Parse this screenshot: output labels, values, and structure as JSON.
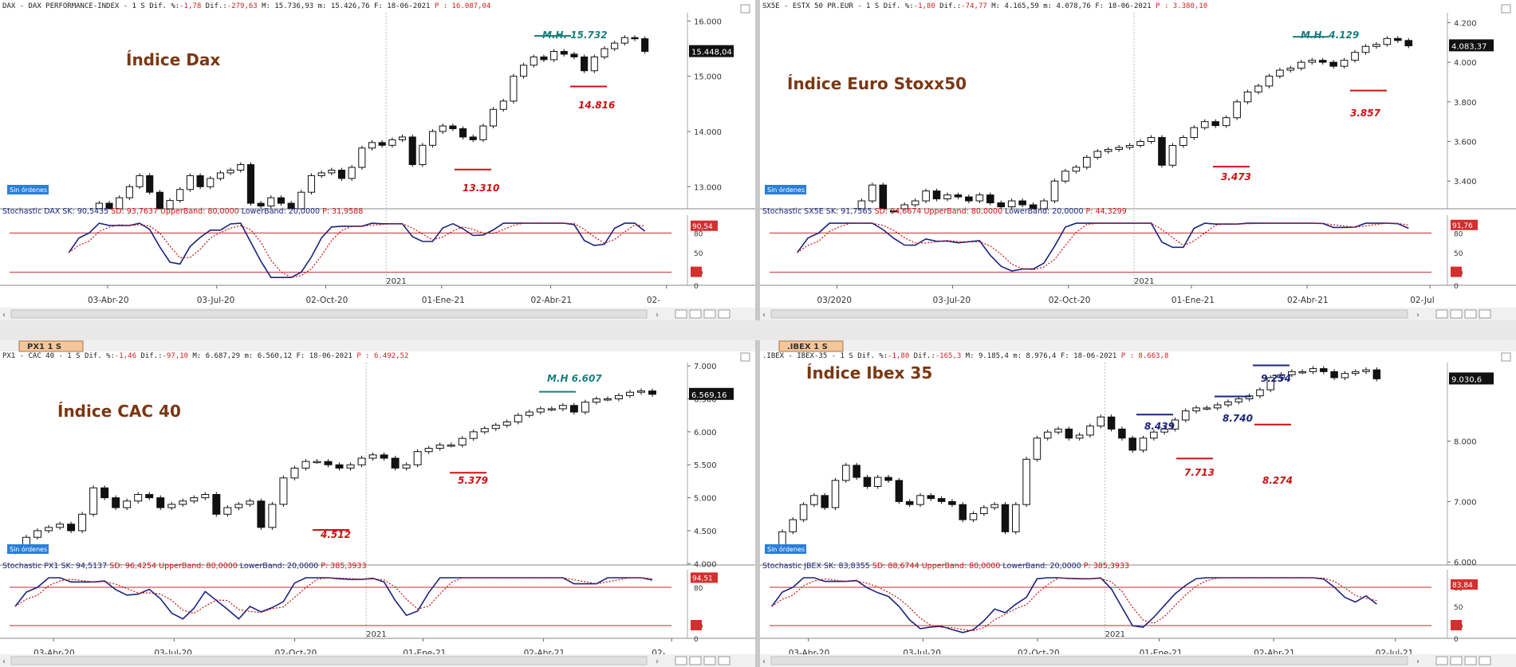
{
  "colors": {
    "title_brown": "#7a3712",
    "annotation_red": "#cc1111",
    "annotation_teal": "#1a7f7f",
    "annotation_navy": "#1a237e",
    "stoch_sk": "#1a237e",
    "stoch_sd": "#cc1111",
    "band": "#c62828",
    "header_red": "#d42020",
    "sin_ordenes_bg": "#2a7fd6",
    "tab_bg": "#f4c79a"
  },
  "panels": [
    {
      "id": "dax",
      "header_prefix": "DAX - DAX PERFORMANCE-INDEX -  1 S Dif. %:",
      "header_pct": "-1,78",
      "header_mid": " Dif.:",
      "header_dif": "-279,63",
      "header_hl": " M: 15.736,93 m: 15.426,76 F: 18-06-2021",
      "header_p": " P : 16.087,04",
      "title": "Índice Dax",
      "sin_ordenes": "Sin órdenes",
      "price_label": "15.448,04",
      "y_ticks": [
        "16.000",
        "15.000",
        "14.000",
        "13.000"
      ],
      "stoch_text_prefix": "Stochastic DAX SK: 90,5435",
      "stoch_sd": " SD: 93,7637",
      "stoch_ub": " UpperBand: 80,0000",
      "stoch_lb": " LowerBand: 20,0000",
      "stoch_p": " P: 31,9588",
      "stoch_value_label": "90,54",
      "stoch_ticks": [
        "80",
        "50",
        "20",
        "0"
      ],
      "year_label": "2021",
      "x_labels": [
        "03-Abr-20",
        "03-Jul-20",
        "02-Oct-20",
        "01-Ene-21",
        "02-Abr-21",
        "02-"
      ],
      "annotations": [
        {
          "text": "M.H. 15.732",
          "color": "teal"
        },
        {
          "text": "14.816",
          "color": "red"
        },
        {
          "text": "13.310",
          "color": "red"
        }
      ],
      "chart_data": {
        "type": "candlestick",
        "title": "Índice Dax",
        "frequency": "weekly",
        "ylim": [
          12600,
          16150
        ],
        "y_ticks": [
          16000,
          15000,
          14000,
          13000
        ],
        "x_range": [
          "2020-03-13",
          "2021-06-18"
        ],
        "start_date": "2020-03-20",
        "closes": [
          12050,
          12300,
          12500,
          12700,
          12600,
          12800,
          13000,
          13200,
          12900,
          12600,
          12750,
          12950,
          13200,
          13000,
          13150,
          13250,
          13300,
          13400,
          12700,
          12650,
          12800,
          12700,
          12500,
          12900,
          13200,
          13250,
          13300,
          13150,
          13350,
          13700,
          13800,
          13750,
          13850,
          13900,
          13400,
          13750,
          14000,
          14100,
          14050,
          13900,
          13850,
          14100,
          14400,
          14550,
          15000,
          15200,
          15350,
          15300,
          15450,
          15400,
          15350,
          15100,
          15350,
          15500,
          15600,
          15700,
          15680,
          15450
        ],
        "last_close": 15448.04,
        "levels": [
          {
            "label": "M.H. 15.732",
            "value": 15732,
            "type": "resistance"
          },
          {
            "label": "14.816",
            "value": 14816,
            "type": "support"
          },
          {
            "label": "13.310",
            "value": 13310,
            "type": "support"
          }
        ],
        "stochastic": {
          "sk": 90.5435,
          "sd": 93.7637,
          "upper_band": 80,
          "lower_band": 20,
          "p": 31.9588,
          "ylim": [
            0,
            100
          ]
        }
      }
    },
    {
      "id": "sx5e",
      "header_prefix": "SX5E - ESTX 50 PR.EUR -  1 S Dif. %:",
      "header_pct": "-1,80",
      "header_mid": " Dif.:",
      "header_dif": "-74,77",
      "header_hl": " M: 4.165,59 m: 4.078,76 F: 18-06-2021",
      "header_p": " P : 3.380,10",
      "title": "Índice Euro Stoxx50",
      "sin_ordenes": "Sin órdenes",
      "price_label": "4.083,37",
      "y_ticks": [
        "4.200",
        "4.000",
        "3.800",
        "3.600",
        "3.400"
      ],
      "stoch_text_prefix": "Stochastic SX5E SK: 91,7565",
      "stoch_sd": " SD: 94,6674",
      "stoch_ub": " UpperBand: 80,0000",
      "stoch_lb": " LowerBand: 20,0000",
      "stoch_p": " P: 44,3299",
      "stoch_value_label": "91,76",
      "stoch_ticks": [
        "80",
        "50",
        "20",
        "0"
      ],
      "year_label": "2021",
      "x_labels": [
        "03/2020",
        "03-Jul-20",
        "02-Oct-20",
        "01-Ene-21",
        "02-Abr-21",
        "02-Jul"
      ],
      "annotations": [
        {
          "text": "M.H. 4.129",
          "color": "teal"
        },
        {
          "text": "3.857",
          "color": "red"
        },
        {
          "text": "3.473",
          "color": "red"
        }
      ],
      "chart_data": {
        "type": "candlestick",
        "title": "Índice Euro Stoxx50",
        "frequency": "weekly",
        "ylim": [
          3260,
          4250
        ],
        "y_ticks": [
          4200,
          4000,
          3800,
          3600,
          3400
        ],
        "x_range": [
          "2020-03-13",
          "2021-06-18"
        ],
        "start_date": "2020-03-20",
        "closes": [
          2950,
          3000,
          3050,
          3100,
          3150,
          3200,
          3300,
          3380,
          3250,
          3230,
          3280,
          3300,
          3350,
          3310,
          3330,
          3320,
          3300,
          3330,
          3290,
          3270,
          3300,
          3280,
          3200,
          3300,
          3400,
          3450,
          3470,
          3520,
          3550,
          3560,
          3570,
          3580,
          3600,
          3620,
          3480,
          3580,
          3620,
          3670,
          3700,
          3680,
          3720,
          3800,
          3850,
          3880,
          3930,
          3960,
          3970,
          4000,
          4010,
          4000,
          3980,
          4010,
          4050,
          4080,
          4090,
          4120,
          4110,
          4083
        ],
        "last_close": 4083.37,
        "levels": [
          {
            "label": "M.H. 4.129",
            "value": 4129,
            "type": "resistance"
          },
          {
            "label": "3.857",
            "value": 3857,
            "type": "support"
          },
          {
            "label": "3.473",
            "value": 3473,
            "type": "support"
          }
        ],
        "stochastic": {
          "sk": 91.7565,
          "sd": 94.6674,
          "upper_band": 80,
          "lower_band": 20,
          "p": 44.3299,
          "ylim": [
            0,
            100
          ]
        }
      }
    },
    {
      "id": "px1",
      "tab": "PX1 1 S",
      "header_prefix": "PX1 - CAC 40 -  1 S Dif. %:",
      "header_pct": "-1,46",
      "header_mid": " Dif.:",
      "header_dif": "-97,10",
      "header_hl": " M: 6.687,29 m: 6.560,12 F: 18-06-2021",
      "header_p": " P : 6.492,52",
      "title": "Índice CAC 40",
      "sin_ordenes": "Sin órdenes",
      "price_label": "6.569,16",
      "y_ticks": [
        "7.000",
        "6.500",
        "6.000",
        "5.500",
        "5.000",
        "4.500",
        "4.000"
      ],
      "stoch_text_prefix": "Stochastic PX1 SK: 94,5137",
      "stoch_sd": " SD: 96,4254",
      "stoch_ub": " UpperBand: 80,0000",
      "stoch_lb": " LowerBand: 20,0000",
      "stoch_p": " P: 385,3933",
      "stoch_value_label": "94,51",
      "stoch_ticks": [
        "80",
        "20",
        "0"
      ],
      "year_label": "2021",
      "x_labels": [
        "03-Abr-20",
        "03-Jul-20",
        "02-Oct-20",
        "01-Ene-21",
        "02-Abr-21",
        "02-"
      ],
      "annotations": [
        {
          "text": "M.H 6.607",
          "color": "teal"
        },
        {
          "text": "5.379",
          "color": "red"
        },
        {
          "text": "4.512",
          "color": "red"
        }
      ],
      "chart_data": {
        "type": "candlestick",
        "title": "Índice CAC 40",
        "frequency": "weekly",
        "ylim": [
          3980,
          7050
        ],
        "y_ticks": [
          7000,
          6500,
          6000,
          5500,
          5000,
          4500,
          4000
        ],
        "x_range": [
          "2020-03-13",
          "2021-06-18"
        ],
        "start_date": "2020-03-20",
        "closes": [
          4200,
          4400,
          4500,
          4550,
          4600,
          4500,
          4750,
          5150,
          5000,
          4850,
          4950,
          5050,
          5000,
          4850,
          4900,
          4950,
          5000,
          5050,
          4750,
          4850,
          4900,
          4950,
          4550,
          4900,
          5300,
          5450,
          5550,
          5550,
          5500,
          5450,
          5500,
          5600,
          5650,
          5600,
          5450,
          5500,
          5700,
          5750,
          5800,
          5800,
          5900,
          6000,
          6050,
          6100,
          6150,
          6250,
          6300,
          6350,
          6350,
          6400,
          6300,
          6450,
          6500,
          6500,
          6550,
          6600,
          6620,
          6569
        ],
        "last_close": 6569.16,
        "levels": [
          {
            "label": "M.H 6.607",
            "value": 6607,
            "type": "resistance"
          },
          {
            "label": "5.379",
            "value": 5379,
            "type": "support"
          },
          {
            "label": "4.512",
            "value": 4512,
            "type": "support"
          }
        ],
        "stochastic": {
          "sk": 94.5137,
          "sd": 96.4254,
          "upper_band": 80,
          "lower_band": 20,
          "p": 385.3933,
          "ylim": [
            0,
            100
          ]
        }
      }
    },
    {
      "id": "ibex",
      "tab": ".IBEX 1 S",
      "header_prefix": ".IBEX - IBEX-35 -  1 S Dif. %:",
      "header_pct": "-1,80",
      "header_mid": " Dif.:",
      "header_dif": "-165,3",
      "header_hl": " M: 9.185,4 m: 8.976,4 F: 18-06-2021",
      "header_p": " P : 8.663,8",
      "title": "Índice Ibex 35",
      "sin_ordenes": "Sin órdenes",
      "price_label": "9.030,6",
      "y_ticks": [
        "8.000",
        "7.000",
        "6.000"
      ],
      "stoch_text_prefix": "Stochastic JBEX SK: 83,8355",
      "stoch_sd": " SD: 88,6744",
      "stoch_ub": " UpperBand: 80,0000",
      "stoch_lb": " LowerBand: 20,0000",
      "stoch_p": " P: 385,3933",
      "stoch_value_label": "83,84",
      "stoch_ticks": [
        "80",
        "50",
        "20",
        "0"
      ],
      "year_label": "2021",
      "x_labels": [
        "03-Abr-20",
        "03-Jul-20",
        "02-Oct-20",
        "01-Ene-21",
        "02-Abr-21",
        "02-Jul-21"
      ],
      "annotations": [
        {
          "text": "9.254",
          "color": "navy"
        },
        {
          "text": "8.439",
          "color": "navy"
        },
        {
          "text": "8.740",
          "color": "navy"
        },
        {
          "text": "7.713",
          "color": "red"
        },
        {
          "text": "8.274",
          "color": "red"
        }
      ],
      "chart_data": {
        "type": "candlestick",
        "title": "Índice Ibex 35",
        "frequency": "weekly",
        "ylim": [
          5950,
          9300
        ],
        "y_ticks": [
          8000,
          7000,
          6000
        ],
        "x_range": [
          "2020-03-13",
          "2021-06-18"
        ],
        "start_date": "2020-03-20",
        "closes": [
          6200,
          6500,
          6700,
          6950,
          7100,
          6900,
          7350,
          7600,
          7400,
          7250,
          7400,
          7350,
          7000,
          6950,
          7100,
          7050,
          7000,
          6950,
          6700,
          6800,
          6900,
          6950,
          6500,
          6950,
          7700,
          8050,
          8150,
          8200,
          8050,
          8100,
          8250,
          8400,
          8200,
          8050,
          7850,
          8050,
          8150,
          8200,
          8350,
          8500,
          8550,
          8550,
          8600,
          8650,
          8700,
          8750,
          8850,
          9050,
          9100,
          9150,
          9150,
          9200,
          9150,
          9050,
          9120,
          9150,
          9180,
          9031
        ],
        "last_close": 9030.6,
        "levels": [
          {
            "label": "9.254",
            "value": 9254,
            "type": "resistance"
          },
          {
            "label": "8.439",
            "value": 8439,
            "type": "resistance"
          },
          {
            "label": "8.740",
            "value": 8740,
            "type": "resistance"
          },
          {
            "label": "7.713",
            "value": 7713,
            "type": "support"
          },
          {
            "label": "8.274",
            "value": 8274,
            "type": "support"
          }
        ],
        "stochastic": {
          "sk": 83.8355,
          "sd": 88.6744,
          "upper_band": 80,
          "lower_band": 20,
          "p": 385.3933,
          "ylim": [
            0,
            100
          ]
        }
      }
    }
  ]
}
